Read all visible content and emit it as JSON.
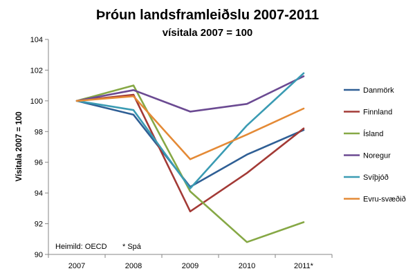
{
  "chart_data": {
    "type": "line",
    "title": "Þróun landsframleiðslu 2007-2011",
    "subtitle": "vísitala 2007 = 100",
    "ylabel": "Vísitala 2007 = 100",
    "xlabel": "",
    "categories": [
      "2007",
      "2008",
      "2009",
      "2010",
      "2011*"
    ],
    "ylim": [
      90,
      104
    ],
    "yticks": [
      90,
      92,
      94,
      96,
      98,
      100,
      102,
      104
    ],
    "grid": false,
    "legend_position": "right",
    "series": [
      {
        "name": "Danmörk",
        "color": "#2f5f95",
        "values": [
          100,
          99.1,
          94.4,
          96.5,
          98.1
        ]
      },
      {
        "name": "Finnland",
        "color": "#a33a36",
        "values": [
          100,
          100.4,
          92.8,
          95.3,
          98.2
        ]
      },
      {
        "name": "Ísland",
        "color": "#86a845",
        "values": [
          100,
          101.0,
          94.1,
          90.8,
          92.1
        ]
      },
      {
        "name": "Noregur",
        "color": "#6b4a92",
        "values": [
          100,
          100.7,
          99.3,
          99.8,
          101.6
        ]
      },
      {
        "name": "Svíþjóð",
        "color": "#3a9bb3",
        "values": [
          100,
          99.4,
          94.3,
          98.4,
          101.8
        ]
      },
      {
        "name": "Evru-svæðið",
        "color": "#e48a36",
        "values": [
          100,
          100.3,
          96.2,
          97.8,
          99.5
        ]
      }
    ],
    "notes": {
      "source": "Heimild: OECD",
      "footnote": "* Spá"
    }
  }
}
